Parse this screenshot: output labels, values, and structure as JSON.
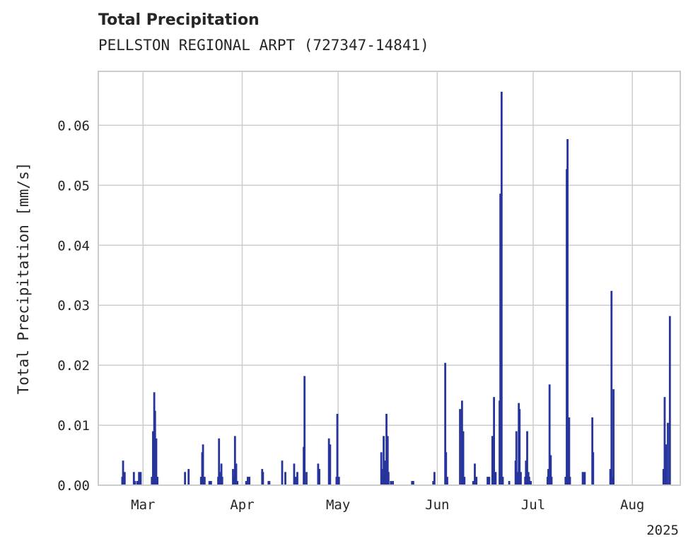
{
  "chart_data": {
    "type": "bar",
    "title": "Total Precipitation",
    "subtitle": "PELLSTON REGIONAL ARPT (727347-14841)",
    "ylabel": "Total Precipitation [mm/s]",
    "xlabel": "",
    "year_label": "2025",
    "x_start": "2025-02-15",
    "x_end": "2025-08-16",
    "ylim": [
      0,
      0.069
    ],
    "y_ticks": [
      0.0,
      0.01,
      0.02,
      0.03,
      0.04,
      0.05,
      0.06
    ],
    "y_tick_labels": [
      "0.00",
      "0.01",
      "0.02",
      "0.03",
      "0.04",
      "0.05",
      "0.06"
    ],
    "x_ticks": [
      {
        "date": "2025-03-01",
        "label": "Mar"
      },
      {
        "date": "2025-04-01",
        "label": "Apr"
      },
      {
        "date": "2025-05-01",
        "label": "May"
      },
      {
        "date": "2025-06-01",
        "label": "Jun"
      },
      {
        "date": "2025-07-01",
        "label": "Jul"
      },
      {
        "date": "2025-08-01",
        "label": "Aug"
      }
    ],
    "grid": true,
    "bar_color": "#26349c",
    "series": [
      {
        "name": "Total Precipitation",
        "points": [
          [
            "2025-02-22T12",
            0.0014
          ],
          [
            "2025-02-22T18",
            0.0041
          ],
          [
            "2025-02-23T06",
            0.0022
          ],
          [
            "2025-02-26T03",
            0.0022
          ],
          [
            "2025-02-26T12",
            0.0007
          ],
          [
            "2025-02-27T06",
            0.0007
          ],
          [
            "2025-02-27T18",
            0.0022
          ],
          [
            "2025-02-28T06",
            0.0022
          ],
          [
            "2025-03-03T18",
            0.0014
          ],
          [
            "2025-03-04T03",
            0.009
          ],
          [
            "2025-03-04T12",
            0.0155
          ],
          [
            "2025-03-04T18",
            0.0124
          ],
          [
            "2025-03-05T03",
            0.0078
          ],
          [
            "2025-03-05T12",
            0.0014
          ],
          [
            "2025-03-14T03",
            0.0022
          ],
          [
            "2025-03-15T06",
            0.0027
          ],
          [
            "2025-03-19T03",
            0.0014
          ],
          [
            "2025-03-19T12",
            0.0055
          ],
          [
            "2025-03-19T18",
            0.0068
          ],
          [
            "2025-03-20T06",
            0.0014
          ],
          [
            "2025-03-21T18",
            0.0007
          ],
          [
            "2025-03-22T06",
            0.0007
          ],
          [
            "2025-03-24T12",
            0.0014
          ],
          [
            "2025-03-24T18",
            0.0078
          ],
          [
            "2025-03-25T03",
            0.0022
          ],
          [
            "2025-03-25T12",
            0.0036
          ],
          [
            "2025-03-25T18",
            0.0014
          ],
          [
            "2025-03-29T03",
            0.0027
          ],
          [
            "2025-03-29T12",
            0.0014
          ],
          [
            "2025-03-29T18",
            0.0082
          ],
          [
            "2025-03-30T03",
            0.0036
          ],
          [
            "2025-03-30T12",
            0.0007
          ],
          [
            "2025-04-02T06",
            0.0007
          ],
          [
            "2025-04-02T18",
            0.0014
          ],
          [
            "2025-04-03T06",
            0.0014
          ],
          [
            "2025-04-07T06",
            0.0027
          ],
          [
            "2025-04-07T12",
            0.0022
          ],
          [
            "2025-04-09T06",
            0.0007
          ],
          [
            "2025-04-09T12",
            0.0007
          ],
          [
            "2025-04-13T12",
            0.0041
          ],
          [
            "2025-04-14T12",
            0.0022
          ],
          [
            "2025-04-17T06",
            0.0036
          ],
          [
            "2025-04-17T18",
            0.0014
          ],
          [
            "2025-04-18T06",
            0.0022
          ],
          [
            "2025-04-20T06",
            0.0064
          ],
          [
            "2025-04-20T12",
            0.0182
          ],
          [
            "2025-04-21T03",
            0.0022
          ],
          [
            "2025-04-24T18",
            0.0036
          ],
          [
            "2025-04-25T03",
            0.0027
          ],
          [
            "2025-04-28T03",
            0.0078
          ],
          [
            "2025-04-28T12",
            0.0068
          ],
          [
            "2025-04-30T12",
            0.0014
          ],
          [
            "2025-04-30T18",
            0.0119
          ],
          [
            "2025-05-01T06",
            0.0014
          ],
          [
            "2025-05-14T12",
            0.0055
          ],
          [
            "2025-05-14T18",
            0.0027
          ],
          [
            "2025-05-15T06",
            0.0082
          ],
          [
            "2025-05-15T18",
            0.0041
          ],
          [
            "2025-05-16T03",
            0.0119
          ],
          [
            "2025-05-16T12",
            0.0082
          ],
          [
            "2025-05-16T18",
            0.0022
          ],
          [
            "2025-05-17T12",
            0.0007
          ],
          [
            "2025-05-18T03",
            0.0007
          ],
          [
            "2025-05-24T03",
            0.0007
          ],
          [
            "2025-05-24T12",
            0.0007
          ],
          [
            "2025-05-30T18",
            0.0007
          ],
          [
            "2025-05-31T03",
            0.0022
          ],
          [
            "2025-06-03T12",
            0.0204
          ],
          [
            "2025-06-03T18",
            0.0055
          ],
          [
            "2025-06-04T03",
            0.0014
          ],
          [
            "2025-06-08T03",
            0.0127
          ],
          [
            "2025-06-08T18",
            0.0141
          ],
          [
            "2025-06-09T03",
            0.009
          ],
          [
            "2025-06-09T12",
            0.0014
          ],
          [
            "2025-06-12T06",
            0.0007
          ],
          [
            "2025-06-12T18",
            0.0036
          ],
          [
            "2025-06-13T06",
            0.0014
          ],
          [
            "2025-06-16T18",
            0.0014
          ],
          [
            "2025-06-17T06",
            0.0014
          ],
          [
            "2025-06-18T06",
            0.0082
          ],
          [
            "2025-06-18T12",
            0.0068
          ],
          [
            "2025-06-18T18",
            0.0147
          ],
          [
            "2025-06-19T06",
            0.0022
          ],
          [
            "2025-06-20T12",
            0.0141
          ],
          [
            "2025-06-20T18",
            0.0486
          ],
          [
            "2025-06-21T03",
            0.0656
          ],
          [
            "2025-06-21T12",
            0.0014
          ],
          [
            "2025-06-23T12",
            0.0007
          ],
          [
            "2025-06-25T12",
            0.0041
          ],
          [
            "2025-06-25T18",
            0.009
          ],
          [
            "2025-06-26T03",
            0.0022
          ],
          [
            "2025-06-26T12",
            0.0137
          ],
          [
            "2025-06-26T18",
            0.0127
          ],
          [
            "2025-06-27T03",
            0.0022
          ],
          [
            "2025-06-28T12",
            0.0014
          ],
          [
            "2025-06-28T18",
            0.0041
          ],
          [
            "2025-06-29T03",
            0.009
          ],
          [
            "2025-06-29T12",
            0.0022
          ],
          [
            "2025-06-29T18",
            0.0014
          ],
          [
            "2025-06-30T06",
            0.0007
          ],
          [
            "2025-07-05T12",
            0.0014
          ],
          [
            "2025-07-05T18",
            0.0027
          ],
          [
            "2025-07-06T03",
            0.0168
          ],
          [
            "2025-07-06T12",
            0.005
          ],
          [
            "2025-07-06T18",
            0.0014
          ],
          [
            "2025-07-11T03",
            0.0014
          ],
          [
            "2025-07-11T12",
            0.0527
          ],
          [
            "2025-07-11T18",
            0.0577
          ],
          [
            "2025-07-12T06",
            0.0113
          ],
          [
            "2025-07-12T12",
            0.0014
          ],
          [
            "2025-07-16T12",
            0.0022
          ],
          [
            "2025-07-17T03",
            0.0022
          ],
          [
            "2025-07-19T12",
            0.0113
          ],
          [
            "2025-07-19T18",
            0.0055
          ],
          [
            "2025-07-25T03",
            0.0027
          ],
          [
            "2025-07-25T12",
            0.0324
          ],
          [
            "2025-07-25T18",
            0.0014
          ],
          [
            "2025-07-26T03",
            0.016
          ],
          [
            "2025-08-10T18",
            0.0027
          ],
          [
            "2025-08-11T03",
            0.0147
          ],
          [
            "2025-08-11T12",
            0.0068
          ],
          [
            "2025-08-12T03",
            0.0104
          ],
          [
            "2025-08-12T18",
            0.0282
          ]
        ]
      }
    ]
  }
}
